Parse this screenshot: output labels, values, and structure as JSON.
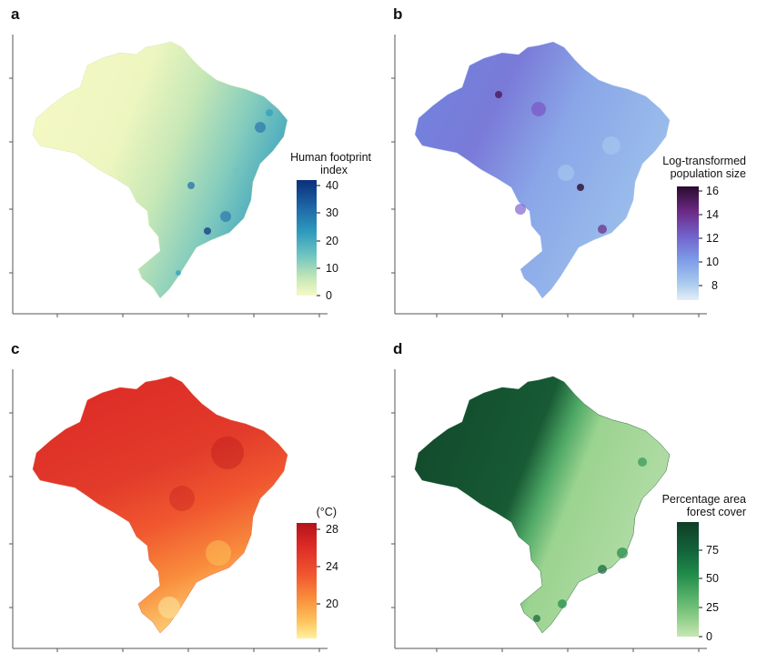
{
  "panels": [
    {
      "letter": "a",
      "colorbar_title_line1": "Human footprint",
      "colorbar_title_line2": "index",
      "ticks": [
        "40",
        "30",
        "20",
        "10",
        "0"
      ],
      "colors": [
        "#0b2f7a",
        "#1f6aa8",
        "#2f9bbd",
        "#6fc4bf",
        "#c5e8b7",
        "#f6f9c5"
      ]
    },
    {
      "letter": "b",
      "colorbar_title_line1": "Log-transformed",
      "colorbar_title_line2": "population size",
      "ticks": [
        "16",
        "14",
        "12",
        "10",
        "8"
      ],
      "colors": [
        "#2a0b2e",
        "#6b2a86",
        "#7266d0",
        "#7d9de8",
        "#a8c9ee",
        "#e3eff7"
      ]
    },
    {
      "letter": "c",
      "colorbar_title_line1": "(°C)",
      "colorbar_title_line2": "",
      "ticks": [
        "28",
        "24",
        "20"
      ],
      "colors": [
        "#b5121b",
        "#dd2a26",
        "#f0572f",
        "#f98d3c",
        "#fdc35c",
        "#fff1a0"
      ]
    },
    {
      "letter": "d",
      "colorbar_title_line1": "Percentage area",
      "colorbar_title_line2": "forest cover",
      "ticks": [
        "75",
        "50",
        "25",
        "0"
      ],
      "colors": [
        "#0f3d26",
        "#13633a",
        "#1f8a49",
        "#54b068",
        "#93cf8a",
        "#c8e7b6"
      ]
    }
  ],
  "chart_data": [
    {
      "type": "heatmap",
      "title": "a",
      "colorbar_label": "Human footprint index",
      "value_range": [
        0,
        42
      ],
      "colorbar_ticks": [
        0,
        10,
        20,
        30,
        40
      ]
    },
    {
      "type": "heatmap",
      "title": "b",
      "colorbar_label": "Log-transformed population size",
      "value_range": [
        7,
        16.5
      ],
      "colorbar_ticks": [
        8,
        10,
        12,
        14,
        16
      ]
    },
    {
      "type": "heatmap",
      "title": "c",
      "colorbar_label": "(°C)",
      "value_range": [
        17,
        29
      ],
      "colorbar_ticks": [
        20,
        24,
        28
      ]
    },
    {
      "type": "heatmap",
      "title": "d",
      "colorbar_label": "Percentage area forest cover",
      "value_range": [
        0,
        100
      ],
      "colorbar_ticks": [
        0,
        25,
        50,
        75
      ]
    }
  ]
}
